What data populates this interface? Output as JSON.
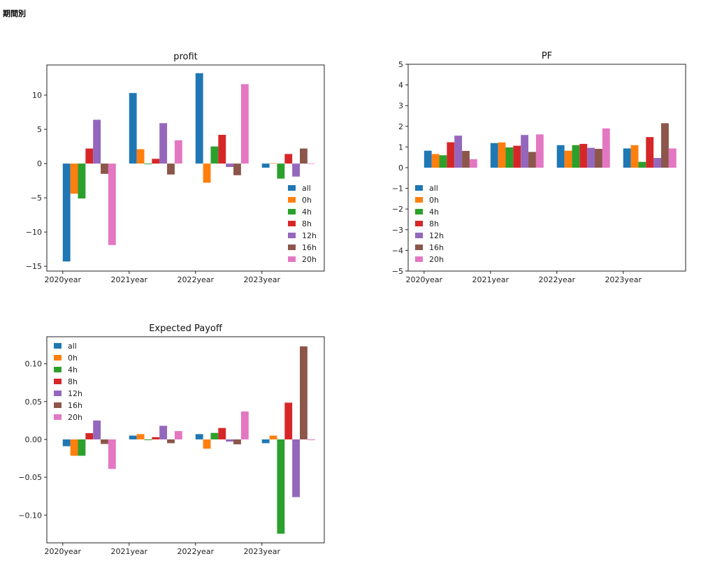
{
  "page": {
    "title": "期間別"
  },
  "series_colors": {
    "all": "#1f77b4",
    "0h": "#ff7f0e",
    "4h": "#2ca02c",
    "8h": "#d62728",
    "12h": "#9467bd",
    "16h": "#8c564b",
    "20h": "#e377c2"
  },
  "chart_data": [
    {
      "type": "bar",
      "title": "profit",
      "xlabel": "",
      "ylabel": "",
      "categories": [
        "2020year",
        "2021year",
        "2022year",
        "2023year"
      ],
      "ylim": [
        -15.7,
        14.4
      ],
      "yticks": [
        -15,
        -10,
        -5,
        0,
        5,
        10
      ],
      "ytick_labels": [
        "−15",
        "−10",
        "−5",
        "0",
        "5",
        "10"
      ],
      "legend_position": "lower-right",
      "grid": false,
      "series": [
        {
          "name": "all",
          "values": [
            -14.3,
            10.3,
            13.2,
            -0.6
          ]
        },
        {
          "name": "0h",
          "values": [
            -4.4,
            2.1,
            -2.8,
            0.05
          ]
        },
        {
          "name": "4h",
          "values": [
            -5.1,
            -0.1,
            2.5,
            -2.2
          ]
        },
        {
          "name": "8h",
          "values": [
            2.2,
            0.7,
            4.2,
            1.4
          ]
        },
        {
          "name": "12h",
          "values": [
            6.4,
            5.9,
            -0.5,
            -1.9
          ]
        },
        {
          "name": "16h",
          "values": [
            -1.5,
            -1.6,
            -1.7,
            2.2
          ]
        },
        {
          "name": "20h",
          "values": [
            -11.9,
            3.4,
            11.6,
            0.0
          ]
        }
      ]
    },
    {
      "type": "bar",
      "title": "PF",
      "xlabel": "",
      "ylabel": "",
      "categories": [
        "2020year",
        "2021year",
        "2022year",
        "2023year"
      ],
      "ylim": [
        -5,
        5
      ],
      "yticks": [
        -5,
        -4,
        -3,
        -2,
        -1,
        0,
        1,
        2,
        3,
        4,
        5
      ],
      "ytick_labels": [
        "−5",
        "−4",
        "−3",
        "−2",
        "−1",
        "0",
        "1",
        "2",
        "3",
        "4",
        "5"
      ],
      "legend_position": "center-left",
      "grid": false,
      "series": [
        {
          "name": "all",
          "values": [
            0.82,
            1.19,
            1.09,
            0.93
          ]
        },
        {
          "name": "0h",
          "values": [
            0.66,
            1.22,
            0.82,
            1.09
          ]
        },
        {
          "name": "4h",
          "values": [
            0.6,
            0.98,
            1.09,
            0.28
          ]
        },
        {
          "name": "8h",
          "values": [
            1.23,
            1.06,
            1.15,
            1.48
          ]
        },
        {
          "name": "12h",
          "values": [
            1.55,
            1.58,
            0.96,
            0.47
          ]
        },
        {
          "name": "16h",
          "values": [
            0.81,
            0.76,
            0.91,
            2.15
          ]
        },
        {
          "name": "20h",
          "values": [
            0.41,
            1.61,
            1.9,
            0.93
          ]
        }
      ]
    },
    {
      "type": "bar",
      "title": "Expected Payoff",
      "xlabel": "",
      "ylabel": "",
      "categories": [
        "2020year",
        "2021year",
        "2022year",
        "2023year"
      ],
      "ylim": [
        -0.1367,
        0.1357
      ],
      "yticks": [
        -0.1,
        -0.05,
        0.0,
        0.05,
        0.1
      ],
      "ytick_labels": [
        "−0.10",
        "−0.05",
        "0.00",
        "0.05",
        "0.10"
      ],
      "legend_position": "upper-left",
      "grid": false,
      "series": [
        {
          "name": "all",
          "values": [
            -0.009,
            0.005,
            0.007,
            -0.005
          ]
        },
        {
          "name": "0h",
          "values": [
            -0.0216,
            0.007,
            -0.0123,
            0.005
          ]
        },
        {
          "name": "4h",
          "values": [
            -0.0216,
            -0.001,
            0.0086,
            -0.1246
          ]
        },
        {
          "name": "8h",
          "values": [
            0.0083,
            0.003,
            0.0151,
            0.0486
          ]
        },
        {
          "name": "12h",
          "values": [
            0.025,
            0.018,
            -0.0028,
            -0.0763
          ]
        },
        {
          "name": "16h",
          "values": [
            -0.006,
            -0.005,
            -0.0065,
            0.123
          ]
        },
        {
          "name": "20h",
          "values": [
            -0.039,
            0.011,
            0.0369,
            -0.001
          ]
        }
      ]
    }
  ]
}
